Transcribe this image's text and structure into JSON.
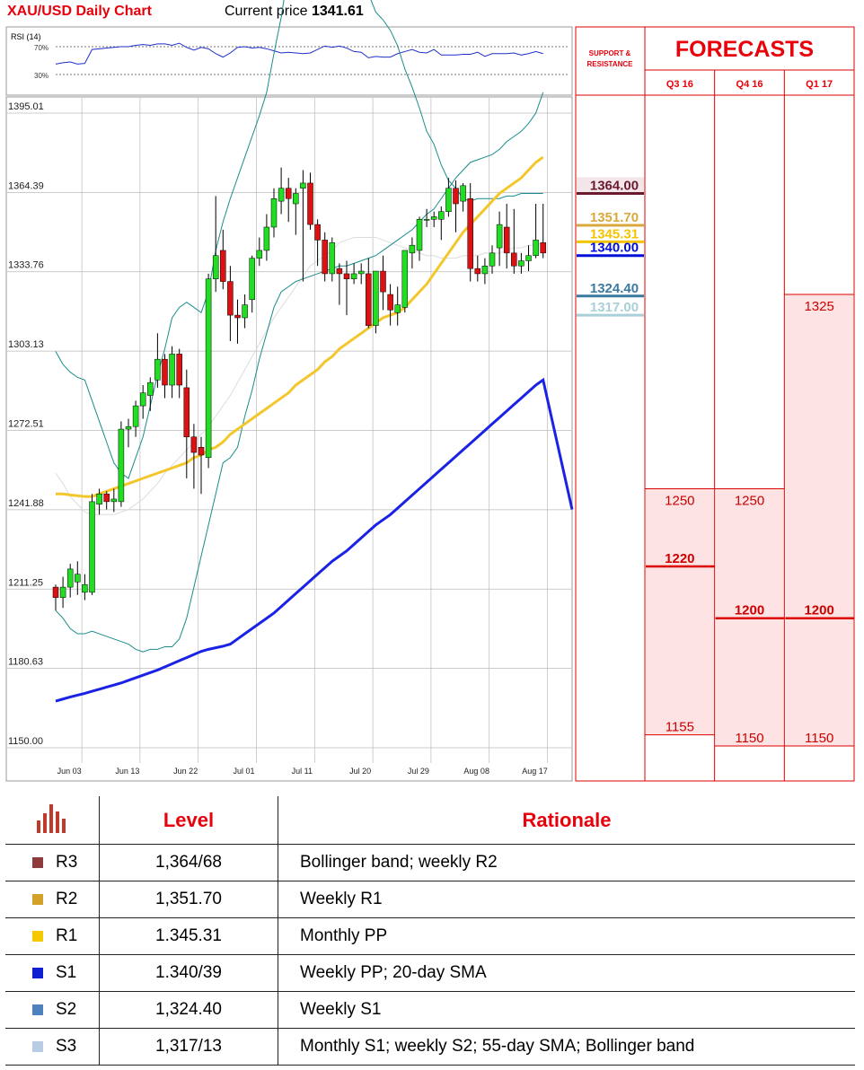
{
  "header": {
    "title": "XAU/USD Daily Chart",
    "price_label": "Current price",
    "price_value": "1341.61"
  },
  "rsi": {
    "label": "RSI (14)",
    "levels": [
      "70%",
      "30%"
    ],
    "values": [
      55,
      57,
      58,
      55,
      56,
      76,
      77,
      78,
      79,
      80,
      80,
      82,
      83,
      82,
      84,
      84,
      82,
      85,
      79,
      75,
      79,
      77,
      70,
      65,
      71,
      79,
      80,
      78,
      79,
      77,
      74,
      71,
      72,
      71,
      70,
      71,
      76,
      81,
      79,
      81,
      78,
      73,
      72,
      64,
      66,
      65,
      65,
      70,
      73,
      76,
      72,
      71,
      76,
      68,
      68,
      68,
      69,
      69,
      72,
      66,
      70,
      70,
      70,
      71,
      68,
      70,
      73,
      70
    ]
  },
  "chart_data": {
    "type": "candlestick",
    "title": "XAU/USD Daily Chart",
    "y_ticks": [
      "1395.01",
      "1364.39",
      "1333.76",
      "1303.13",
      "1272.51",
      "1241.88",
      "1211.25",
      "1180.63",
      "1150.00"
    ],
    "ylim": [
      1150.0,
      1395.01
    ],
    "x_ticks": [
      "Jun 03",
      "Jun 13",
      "Jun 22",
      "Jul 01",
      "Jul 11",
      "Jul 20",
      "Jul 29",
      "Aug 08",
      "Aug 17"
    ],
    "x_tick_index": [
      1,
      9,
      17,
      25,
      33,
      41,
      49,
      57,
      65
    ],
    "n": 68,
    "candles": [
      [
        1212,
        1213,
        1203,
        1208
      ],
      [
        1208,
        1216,
        1204,
        1212
      ],
      [
        1212,
        1221,
        1208,
        1219
      ],
      [
        1214,
        1222,
        1209,
        1217
      ],
      [
        1210,
        1217,
        1207,
        1213
      ],
      [
        1210,
        1248,
        1209,
        1245
      ],
      [
        1244,
        1250,
        1240,
        1248
      ],
      [
        1248,
        1249,
        1242,
        1245
      ],
      [
        1245,
        1250,
        1241,
        1246
      ],
      [
        1245,
        1276,
        1243,
        1273
      ],
      [
        1273,
        1277,
        1266,
        1274
      ],
      [
        1274,
        1284,
        1270,
        1282
      ],
      [
        1282,
        1290,
        1277,
        1287
      ],
      [
        1286,
        1293,
        1280,
        1291
      ],
      [
        1292,
        1310,
        1289,
        1300
      ],
      [
        1300,
        1302,
        1285,
        1290
      ],
      [
        1290,
        1305,
        1285,
        1302
      ],
      [
        1302,
        1304,
        1285,
        1290
      ],
      [
        1289,
        1296,
        1254,
        1270
      ],
      [
        1270,
        1275,
        1250,
        1264
      ],
      [
        1266,
        1270,
        1248,
        1263
      ],
      [
        1262,
        1333,
        1258,
        1331
      ],
      [
        1331,
        1363,
        1326,
        1340
      ],
      [
        1342,
        1350,
        1327,
        1330
      ],
      [
        1330,
        1336,
        1307,
        1317
      ],
      [
        1317,
        1323,
        1306,
        1316
      ],
      [
        1316,
        1325,
        1312,
        1321
      ],
      [
        1323,
        1340,
        1318,
        1339
      ],
      [
        1339,
        1347,
        1336,
        1342
      ],
      [
        1342,
        1356,
        1338,
        1351
      ],
      [
        1351,
        1366,
        1347,
        1362
      ],
      [
        1361,
        1374,
        1356,
        1366
      ],
      [
        1366,
        1370,
        1353,
        1362
      ],
      [
        1360,
        1366,
        1348,
        1364
      ],
      [
        1366,
        1373,
        1330,
        1368
      ],
      [
        1368,
        1372,
        1350,
        1352
      ],
      [
        1352,
        1354,
        1336,
        1346
      ],
      [
        1346,
        1349,
        1330,
        1333
      ],
      [
        1333,
        1347,
        1330,
        1345
      ],
      [
        1335,
        1337,
        1321,
        1333
      ],
      [
        1333,
        1338,
        1317,
        1331
      ],
      [
        1331,
        1337,
        1329,
        1333
      ],
      [
        1333,
        1337,
        1329,
        1334
      ],
      [
        1333,
        1339,
        1312,
        1313
      ],
      [
        1313,
        1334,
        1310,
        1334
      ],
      [
        1334,
        1340,
        1319,
        1326
      ],
      [
        1325,
        1329,
        1313,
        1319
      ],
      [
        1318,
        1328,
        1313,
        1321
      ],
      [
        1320,
        1342,
        1318,
        1342
      ],
      [
        1341,
        1347,
        1335,
        1344
      ],
      [
        1342,
        1355,
        1338,
        1354
      ],
      [
        1354,
        1358,
        1351,
        1354
      ],
      [
        1354,
        1357,
        1351,
        1355
      ],
      [
        1354,
        1359,
        1346,
        1357
      ],
      [
        1357,
        1370,
        1355,
        1366
      ],
      [
        1366,
        1369,
        1349,
        1360
      ],
      [
        1361,
        1368,
        1357,
        1367
      ],
      [
        1362,
        1368,
        1330,
        1335
      ],
      [
        1335,
        1340,
        1330,
        1333
      ],
      [
        1333,
        1339,
        1329,
        1336
      ],
      [
        1336,
        1344,
        1333,
        1341
      ],
      [
        1343,
        1357,
        1336,
        1352
      ],
      [
        1351,
        1360,
        1335,
        1341
      ],
      [
        1341,
        1358,
        1333,
        1336
      ],
      [
        1336,
        1341,
        1333,
        1338
      ],
      [
        1338,
        1344,
        1334,
        1340
      ],
      [
        1340,
        1360,
        1339,
        1346
      ],
      [
        1345,
        1360,
        1339,
        1341
      ]
    ],
    "sma200": [
      1168,
      1168.8,
      1169.6,
      1170.3,
      1171,
      1171.8,
      1172.6,
      1173.4,
      1174.2,
      1175,
      1176,
      1177,
      1178,
      1179,
      1180,
      1181.2,
      1182.4,
      1183.6,
      1184.8,
      1186,
      1187.2,
      1188,
      1188.6,
      1189.2,
      1190,
      1192,
      1194,
      1196,
      1198,
      1200,
      1202,
      1204.5,
      1207,
      1209.5,
      1212,
      1214.5,
      1217,
      1219.5,
      1222,
      1224,
      1226,
      1228.5,
      1231,
      1233.5,
      1236,
      1238,
      1240,
      1242.5,
      1245,
      1247.5,
      1250,
      1252.5,
      1255,
      1257.5,
      1260,
      1262.5,
      1265,
      1267.5,
      1270,
      1272.5,
      1275,
      1277.5,
      1280,
      1282.5,
      1285,
      1287.5,
      1290,
      1292
    ],
    "sma55": [
      1248,
      1248,
      1247.6,
      1247.3,
      1247,
      1247,
      1248,
      1249,
      1250,
      1251,
      1252,
      1253,
      1254,
      1255,
      1256,
      1257,
      1258,
      1259,
      1260,
      1262,
      1263,
      1265,
      1266,
      1268,
      1271,
      1273,
      1275,
      1277,
      1279,
      1281,
      1283,
      1285,
      1287,
      1290,
      1292,
      1294,
      1296,
      1299,
      1301,
      1304,
      1306,
      1308,
      1310,
      1312,
      1314,
      1316,
      1317,
      1318,
      1320,
      1323,
      1326,
      1329,
      1333,
      1337,
      1341,
      1345,
      1349,
      1352,
      1355,
      1358,
      1361,
      1364,
      1366,
      1368,
      1370,
      1373,
      1376,
      1378
    ],
    "sma20": [
      1256,
      1252,
      1247,
      1244,
      1241,
      1240,
      1240,
      1240,
      1240,
      1241,
      1242,
      1244,
      1246,
      1249,
      1252,
      1256,
      1259,
      1262,
      1265,
      1268,
      1271,
      1274,
      1278,
      1282,
      1286,
      1291,
      1296,
      1301,
      1306,
      1311,
      1316,
      1320,
      1324,
      1328,
      1332,
      1336,
      1338,
      1340,
      1342,
      1345,
      1346,
      1347,
      1347,
      1347,
      1347,
      1346,
      1345,
      1344,
      1343,
      1342,
      1341,
      1340,
      1340,
      1339,
      1339,
      1339,
      1340,
      1340,
      1340,
      1341,
      1341,
      1341,
      1342,
      1343,
      1343,
      1344,
      1344,
      1345
    ],
    "bb_upper": [
      1303,
      1298,
      1295,
      1293,
      1292,
      1284,
      1276,
      1268,
      1260,
      1256,
      1254,
      1262,
      1270,
      1282,
      1294,
      1304,
      1316,
      1320,
      1322,
      1320,
      1318,
      1326,
      1342,
      1353,
      1362,
      1370,
      1378,
      1386,
      1394,
      1403,
      1418,
      1432,
      1450,
      1476,
      1499,
      1519,
      1531,
      1534,
      1534,
      1522,
      1493,
      1472,
      1454,
      1441,
      1434,
      1431,
      1427,
      1421,
      1412,
      1405,
      1397,
      1388,
      1383,
      1375,
      1369,
      1366,
      1362,
      1361,
      1362,
      1362,
      1362,
      1362,
      1363,
      1363,
      1364,
      1364,
      1364,
      1364
    ],
    "bb_lower": [
      1203,
      1200,
      1196,
      1194,
      1194,
      1195,
      1194,
      1193,
      1192,
      1191,
      1190,
      1188,
      1187,
      1188,
      1188,
      1189,
      1189,
      1192,
      1200,
      1212,
      1224,
      1236,
      1248,
      1260,
      1262,
      1266,
      1278,
      1288,
      1300,
      1310,
      1320,
      1326,
      1328,
      1330,
      1331,
      1332,
      1333,
      1334,
      1335,
      1336,
      1336,
      1337,
      1338,
      1339,
      1340,
      1342,
      1344,
      1346,
      1348,
      1350,
      1353,
      1356,
      1358,
      1362,
      1366,
      1370,
      1373,
      1376,
      1377,
      1378,
      1379,
      1381,
      1384,
      1386,
      1388,
      1391,
      1395,
      1403
    ]
  },
  "sr_panel": {
    "title": "SUPPORT & RESISTANCE",
    "levels": [
      {
        "name": "R3",
        "value": 1364.0,
        "label": "1364.00",
        "color": "#6b1a2e",
        "box": true
      },
      {
        "name": "R2",
        "value": 1351.7,
        "label": "1351.70",
        "color": "#d9a93e",
        "box": false
      },
      {
        "name": "R1",
        "value": 1345.31,
        "label": "1345.31",
        "color": "#f4c400",
        "box": false
      },
      {
        "name": "S1",
        "value": 1340.0,
        "label": "1340.00",
        "color": "#0010d8",
        "box": false
      },
      {
        "name": "S2",
        "value": 1324.4,
        "label": "1324.40",
        "color": "#3b7aa0",
        "box": false
      },
      {
        "name": "S3",
        "value": 1317.0,
        "label": "1317.00",
        "color": "#a9cfd8",
        "box": false
      }
    ]
  },
  "forecasts": {
    "title": "FORECASTS",
    "columns": [
      {
        "label": "Q3 16",
        "high": 1250,
        "high_label": "1250",
        "mid": 1220,
        "mid_label": "1220",
        "low": 1155,
        "low_label": "1155"
      },
      {
        "label": "Q4 16",
        "high": 1250,
        "high_label": "1250",
        "mid": 1200,
        "mid_label": "1200",
        "low": 1150,
        "low_label": "1150"
      },
      {
        "label": "Q1 17",
        "high": 1325,
        "high_label": "1325",
        "mid": 1200,
        "mid_label": "1200",
        "low": 1150,
        "low_label": "1150"
      }
    ]
  },
  "levels_table": {
    "header_level": "Level",
    "header_rationale": "Rationale",
    "rows": [
      {
        "name": "R3",
        "level": "1,364/68",
        "rationale": "Bollinger band; weekly R2",
        "color": "#8e3b3b"
      },
      {
        "name": "R2",
        "level": "1,351.70",
        "rationale": "Weekly R1",
        "color": "#d3a02a"
      },
      {
        "name": "R1",
        "level": "1.345.31",
        "rationale": "Monthly PP",
        "color": "#f6c800"
      },
      {
        "name": "S1",
        "level": "1.340/39",
        "rationale": "Weekly PP; 20-day SMA",
        "color": "#1020d0"
      },
      {
        "name": "S2",
        "level": "1,324.40",
        "rationale": "Weekly S1",
        "color": "#4f81bd"
      },
      {
        "name": "S3",
        "level": "1,317/13",
        "rationale": "Monthly S1; weekly S2; 55-day SMA; Bollinger band",
        "color": "#b8cce4"
      }
    ]
  }
}
